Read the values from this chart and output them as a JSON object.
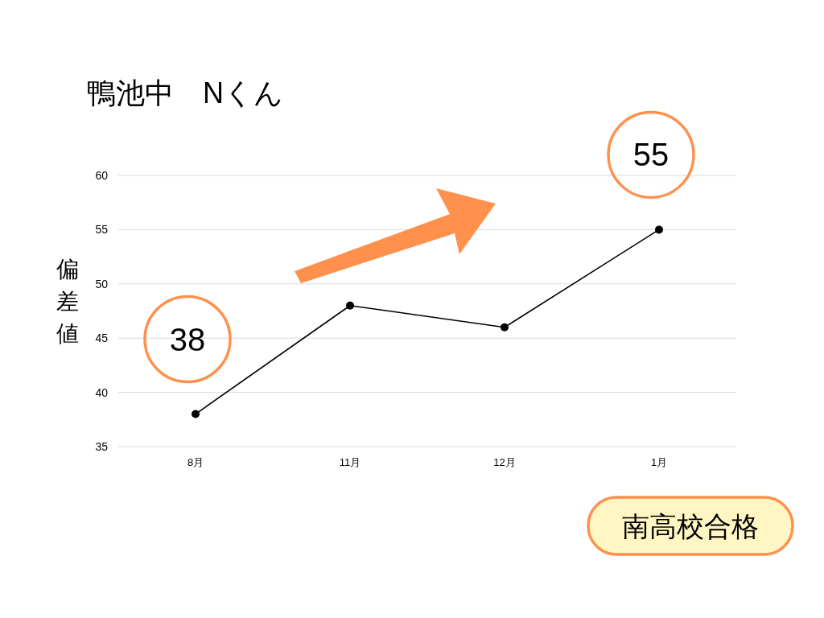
{
  "chart_data": {
    "type": "line",
    "title": "鴨池中　Nくん",
    "ylabel": "偏差値",
    "categories": [
      "8月",
      "11月",
      "12月",
      "1月"
    ],
    "series": [
      {
        "color": "#000000",
        "values": [
          38,
          48,
          46,
          55
        ]
      }
    ],
    "ylim": [
      35,
      60
    ],
    "yticks": [
      35,
      40,
      45,
      50,
      55,
      60
    ],
    "grid": "y",
    "marker": "circle",
    "line_style": "solid",
    "annotations": [
      {
        "text": "38",
        "x": "8月",
        "y": 38
      },
      {
        "text": "55",
        "x": "1月",
        "y": 55
      },
      "南高校合格"
    ]
  }
}
